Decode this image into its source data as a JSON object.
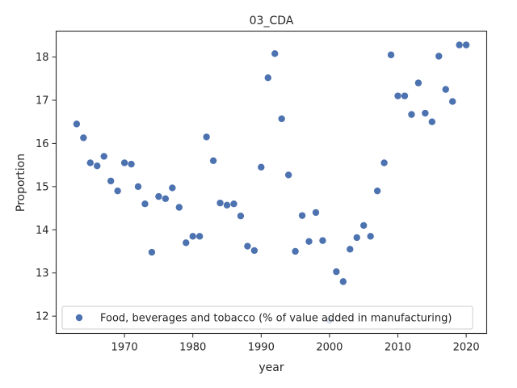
{
  "chart_data": {
    "type": "scatter",
    "title": "03_CDA",
    "xlabel": "year",
    "ylabel": "Proportion",
    "xlim": [
      1960,
      2023
    ],
    "ylim": [
      11.6,
      18.6
    ],
    "xticks": [
      1970,
      1980,
      1990,
      2000,
      2010,
      2020
    ],
    "yticks": [
      12,
      13,
      14,
      15,
      16,
      17,
      18
    ],
    "grid": false,
    "legend": {
      "placement": "lower-left"
    },
    "series": [
      {
        "name": "Food, beverages and tobacco (% of value added in manufacturing)",
        "color": "#4c72b0",
        "x": [
          1963,
          1964,
          1965,
          1966,
          1967,
          1968,
          1969,
          1970,
          1971,
          1972,
          1973,
          1974,
          1975,
          1976,
          1977,
          1978,
          1979,
          1980,
          1981,
          1982,
          1983,
          1984,
          1985,
          1986,
          1987,
          1988,
          1989,
          1990,
          1991,
          1992,
          1993,
          1994,
          1995,
          1996,
          1997,
          1998,
          1999,
          2000,
          2001,
          2002,
          2003,
          2004,
          2005,
          2006,
          2007,
          2008,
          2009,
          2010,
          2011,
          2012,
          2013,
          2014,
          2015,
          2016,
          2017,
          2018,
          2019,
          2020
        ],
        "y": [
          16.45,
          16.13,
          15.55,
          15.48,
          15.7,
          15.13,
          14.9,
          15.55,
          15.52,
          15.0,
          14.6,
          13.48,
          14.77,
          14.72,
          14.97,
          14.52,
          13.7,
          13.85,
          13.85,
          16.15,
          15.6,
          14.62,
          14.57,
          14.6,
          14.32,
          13.62,
          13.52,
          15.45,
          17.52,
          18.08,
          16.57,
          15.27,
          13.5,
          14.33,
          13.73,
          14.4,
          13.75,
          11.9,
          13.03,
          12.8,
          13.55,
          13.82,
          14.1,
          13.85,
          14.9,
          15.55,
          18.05,
          17.1,
          17.1,
          16.67,
          17.4,
          16.7,
          16.5,
          18.02,
          17.25,
          16.97,
          18.28,
          18.28
        ]
      }
    ]
  }
}
